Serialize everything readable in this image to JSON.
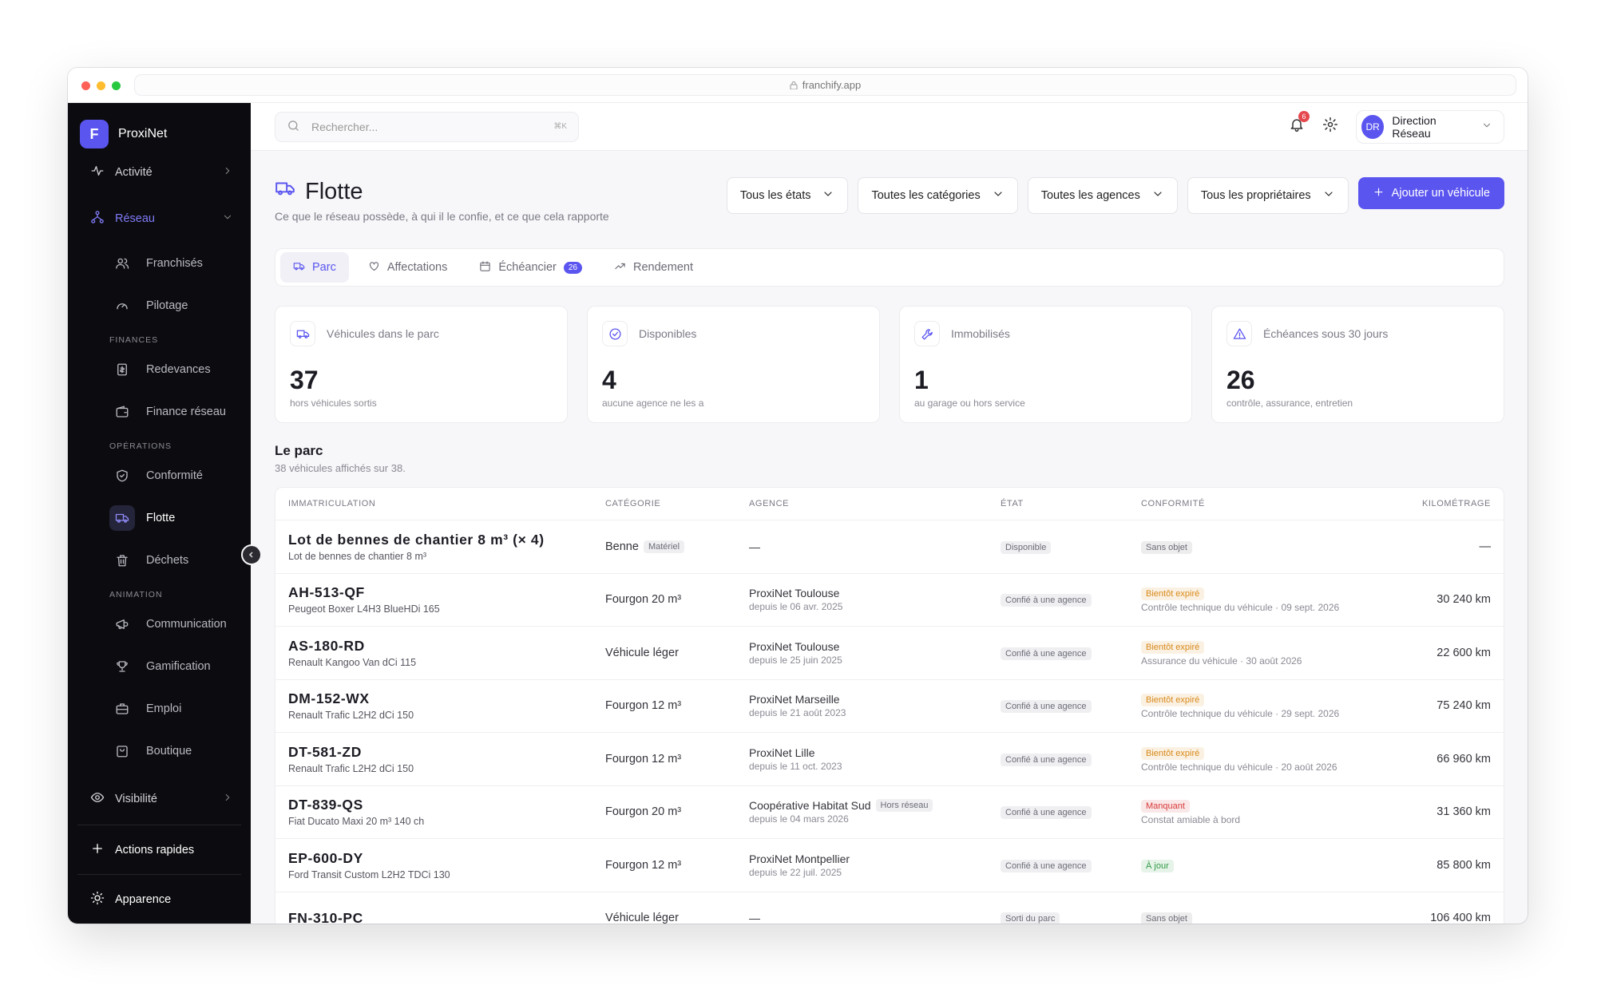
{
  "browser": {
    "url": "franchify.app"
  },
  "sidebar": {
    "logo_letter": "F",
    "brand": "ProxiNet",
    "activity": "Activité",
    "network": {
      "label": "Réseau",
      "items": [
        "Franchisés",
        "Pilotage"
      ],
      "groups": [
        {
          "title": "FINANCES",
          "items": [
            "Redevances",
            "Finance réseau"
          ]
        },
        {
          "title": "OPÉRATIONS",
          "items": [
            "Conformité",
            "Flotte",
            "Déchets"
          ]
        },
        {
          "title": "ANIMATION",
          "items": [
            "Communication",
            "Gamification",
            "Emploi",
            "Boutique"
          ]
        }
      ]
    },
    "visibility": "Visibilité",
    "quick_actions": "Actions rapides",
    "appearance": "Apparence"
  },
  "topbar": {
    "search_placeholder": "Rechercher...",
    "shortcut": "⌘K",
    "notifications": 6,
    "avatar": "DR",
    "user": "Direction Réseau"
  },
  "header": {
    "title": "Flotte",
    "subtitle": "Ce que le réseau possède, à qui il le confie, et ce que cela rapporte",
    "filters": [
      "Tous les états",
      "Toutes les catégories",
      "Toutes les agences",
      "Tous les propriétaires"
    ],
    "add_button": "Ajouter un véhicule"
  },
  "tabs": [
    {
      "label": "Parc"
    },
    {
      "label": "Affectations"
    },
    {
      "label": "Échéancier",
      "badge": 26
    },
    {
      "label": "Rendement"
    }
  ],
  "stats": [
    {
      "label": "Véhicules dans le parc",
      "value": 37,
      "note": "hors véhicules sortis"
    },
    {
      "label": "Disponibles",
      "value": 4,
      "note": "aucune agence ne les a"
    },
    {
      "label": "Immobilisés",
      "value": 1,
      "note": "au garage ou hors service"
    },
    {
      "label": "Échéances sous 30 jours",
      "value": 26,
      "note": "contrôle, assurance, entretien"
    }
  ],
  "table": {
    "title": "Le parc",
    "subtitle": "38 véhicules affichés sur 38.",
    "columns": [
      "IMMATRICULATION",
      "CATÉGORIE",
      "AGENCE",
      "ÉTAT",
      "CONFORMITÉ",
      "KILOMÉTRAGE"
    ],
    "rows": [
      {
        "plate": "Lot de bennes de chantier 8 m³ (× 4)",
        "model": "Lot de bennes de chantier 8 m³",
        "category": "Benne",
        "category_tag": "Matériel",
        "agency": "—",
        "state": "Disponible",
        "compliance": "Sans objet",
        "compliance_color": "#6b6b76",
        "km": "—"
      },
      {
        "plate": "AH-513-QF",
        "model": "Peugeot Boxer L4H3 BlueHDi 165",
        "category": "Fourgon 20 m³",
        "agency": "ProxiNet Toulouse",
        "since": "depuis le 06 avr. 2025",
        "state": "Confié à une agence",
        "compliance": "Bientôt expiré",
        "compliance_color": "#d9891a",
        "compliance_detail": "Contrôle technique du véhicule · 09 sept. 2026",
        "km": "30 240 km"
      },
      {
        "plate": "AS-180-RD",
        "model": "Renault Kangoo Van dCi 115",
        "category": "Véhicule léger",
        "agency": "ProxiNet Toulouse",
        "since": "depuis le 25 juin 2025",
        "state": "Confié à une agence",
        "compliance": "Bientôt expiré",
        "compliance_color": "#d9891a",
        "compliance_detail": "Assurance du véhicule · 30 août 2026",
        "km": "22 600 km"
      },
      {
        "plate": "DM-152-WX",
        "model": "Renault Trafic L2H2 dCi 150",
        "category": "Fourgon 12 m³",
        "agency": "ProxiNet Marseille",
        "since": "depuis le 21 août 2023",
        "state": "Confié à une agence",
        "compliance": "Bientôt expiré",
        "compliance_color": "#d9891a",
        "compliance_detail": "Contrôle technique du véhicule · 29 sept. 2026",
        "km": "75 240 km"
      },
      {
        "plate": "DT-581-ZD",
        "model": "Renault Trafic L2H2 dCi 150",
        "category": "Fourgon 12 m³",
        "agency": "ProxiNet Lille",
        "since": "depuis le 11 oct. 2023",
        "state": "Confié à une agence",
        "compliance": "Bientôt expiré",
        "compliance_color": "#d9891a",
        "compliance_detail": "Contrôle technique du véhicule · 20 août 2026",
        "km": "66 960 km"
      },
      {
        "plate": "DT-839-QS",
        "model": "Fiat Ducato Maxi 20 m³ 140 ch",
        "category": "Fourgon 20 m³",
        "agency": "Coopérative Habitat Sud",
        "agency_tag": "Hors réseau",
        "since": "depuis le 04 mars 2026",
        "state": "Confié à une agence",
        "compliance": "Manquant",
        "compliance_color": "#d93a3a",
        "compliance_detail": "Constat amiable à bord",
        "km": "31 360 km"
      },
      {
        "plate": "EP-600-DY",
        "model": "Ford Transit Custom L2H2 TDCi 130",
        "category": "Fourgon 12 m³",
        "agency": "ProxiNet Montpellier",
        "since": "depuis le 22 juil. 2025",
        "state": "Confié à une agence",
        "compliance": "À jour",
        "compliance_color": "#2f9a45",
        "km": "85 800 km"
      },
      {
        "plate": "FN-310-PC",
        "category": "Véhicule léger",
        "agency": "—",
        "state": "Sorti du parc",
        "compliance": "Sans objet",
        "compliance_color": "#6b6b76",
        "km": "106 400 km"
      }
    ]
  }
}
